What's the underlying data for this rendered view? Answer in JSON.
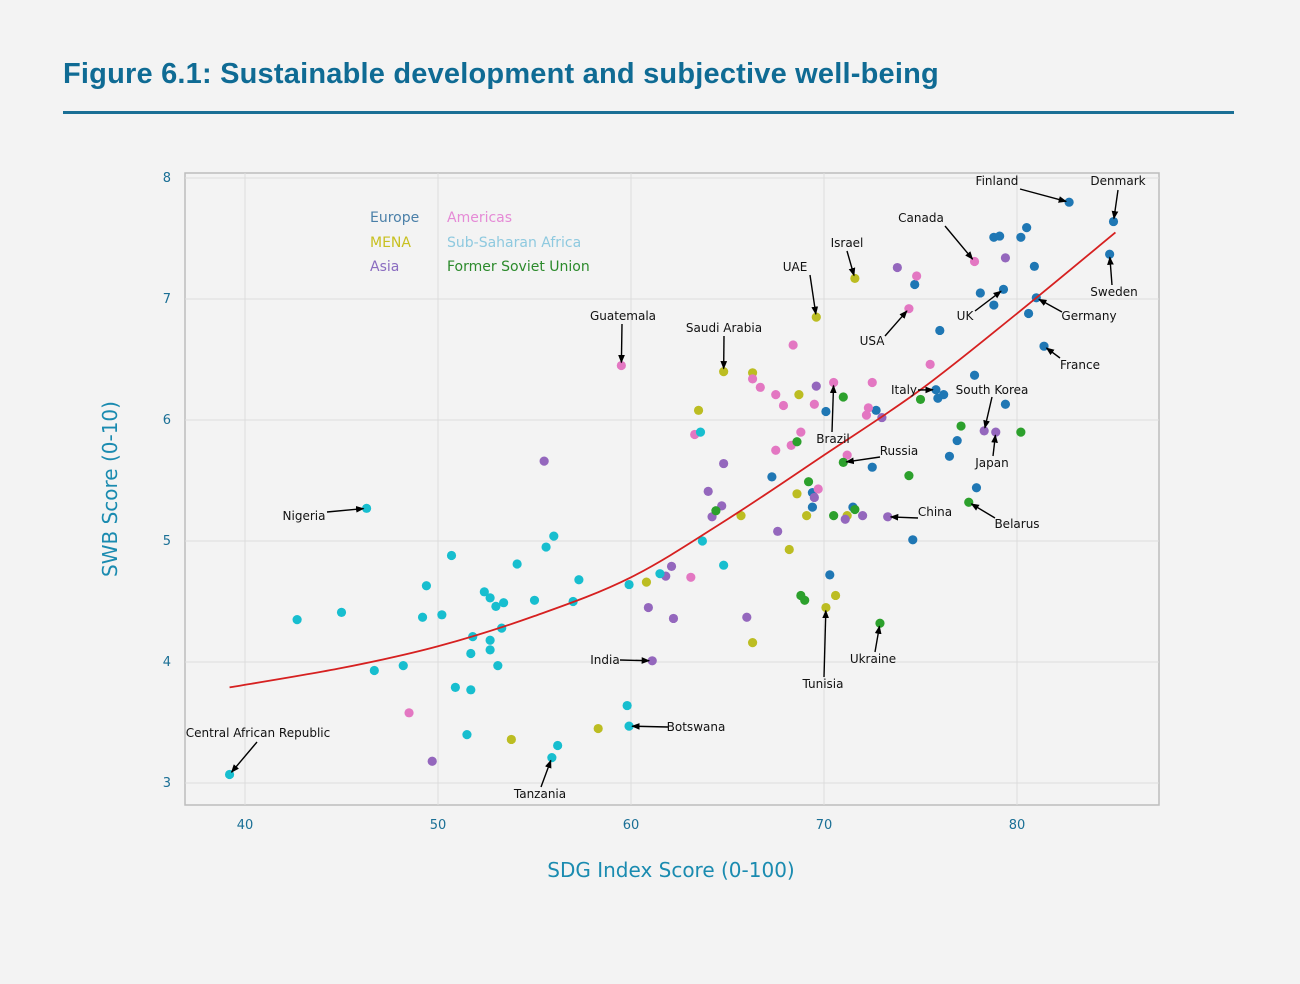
{
  "title": "Figure 6.1: Sustainable development and subjective well-being",
  "chart_data": {
    "type": "scatter",
    "title": "Figure 6.1: Sustainable development and subjective well-being",
    "xlabel": "SDG Index Score (0-100)",
    "ylabel": "SWB Score (0-10)",
    "xlim": [
      36.9,
      87.5
    ],
    "ylim": [
      2.82,
      8.04
    ],
    "xticks": [
      "40",
      "50",
      "60",
      "70",
      "80"
    ],
    "yticks": [
      "3",
      "4",
      "5",
      "6",
      "7",
      "8"
    ],
    "grid": true,
    "legend_placement": "top-left",
    "series": [
      {
        "name": "Europe",
        "color": "#1f77b4",
        "legend_color": "#4a7fa8",
        "points": [
          [
            67.3,
            5.53
          ],
          [
            69.4,
            5.4
          ],
          [
            69.4,
            5.28
          ],
          [
            70.1,
            6.07
          ],
          [
            70.3,
            4.72
          ],
          [
            71.5,
            5.28
          ],
          [
            72.5,
            5.61
          ],
          [
            72.7,
            6.08
          ],
          [
            74.6,
            5.01
          ],
          [
            74.7,
            7.12
          ],
          [
            76.0,
            6.74
          ],
          [
            75.8,
            6.25
          ],
          [
            75.9,
            6.18
          ],
          [
            76.2,
            6.21
          ],
          [
            76.5,
            5.7
          ],
          [
            76.9,
            5.83
          ],
          [
            77.8,
            6.37
          ],
          [
            77.9,
            5.44
          ],
          [
            78.1,
            7.05
          ],
          [
            78.8,
            7.51
          ],
          [
            79.1,
            7.52
          ],
          [
            78.8,
            6.95
          ],
          [
            79.3,
            7.08
          ],
          [
            79.4,
            6.13
          ],
          [
            80.2,
            7.51
          ],
          [
            80.5,
            7.59
          ],
          [
            80.9,
            7.27
          ],
          [
            80.6,
            6.88
          ],
          [
            81.0,
            7.01
          ],
          [
            81.4,
            6.61
          ],
          [
            82.7,
            7.8
          ],
          [
            85.0,
            7.64
          ],
          [
            84.8,
            7.37
          ]
        ]
      },
      {
        "name": "MENA",
        "color": "#bcbd22",
        "legend_color": "#c8c020",
        "points": [
          [
            53.8,
            3.36
          ],
          [
            58.3,
            3.45
          ],
          [
            60.8,
            4.66
          ],
          [
            63.5,
            6.08
          ],
          [
            64.8,
            6.4
          ],
          [
            66.3,
            6.39
          ],
          [
            68.7,
            6.21
          ],
          [
            66.3,
            4.16
          ],
          [
            65.7,
            5.21
          ],
          [
            68.2,
            4.93
          ],
          [
            68.6,
            5.39
          ],
          [
            69.1,
            5.21
          ],
          [
            69.6,
            6.85
          ],
          [
            71.6,
            7.17
          ],
          [
            70.1,
            4.45
          ],
          [
            70.6,
            4.55
          ],
          [
            71.2,
            5.21
          ]
        ]
      },
      {
        "name": "Asia",
        "color": "#9467bd",
        "legend_color": "#8a6cc0",
        "points": [
          [
            49.7,
            3.18
          ],
          [
            55.5,
            5.66
          ],
          [
            60.9,
            4.45
          ],
          [
            61.1,
            4.01
          ],
          [
            61.8,
            4.71
          ],
          [
            62.1,
            4.79
          ],
          [
            62.2,
            4.36
          ],
          [
            64.0,
            5.41
          ],
          [
            64.2,
            5.2
          ],
          [
            64.7,
            5.29
          ],
          [
            64.8,
            5.64
          ],
          [
            67.6,
            5.08
          ],
          [
            66.0,
            4.37
          ],
          [
            69.5,
            5.36
          ],
          [
            69.6,
            6.28
          ],
          [
            71.1,
            5.18
          ],
          [
            72.0,
            5.21
          ],
          [
            73.0,
            6.02
          ],
          [
            73.3,
            5.2
          ],
          [
            73.8,
            7.26
          ],
          [
            78.3,
            5.91
          ],
          [
            78.9,
            5.9
          ],
          [
            79.4,
            7.34
          ]
        ]
      },
      {
        "name": "Americas",
        "color": "#e377c2",
        "legend_color": "#e58ad6",
        "points": [
          [
            48.5,
            3.58
          ],
          [
            59.5,
            6.45
          ],
          [
            63.1,
            4.7
          ],
          [
            63.3,
            5.88
          ],
          [
            66.3,
            6.34
          ],
          [
            66.7,
            6.27
          ],
          [
            67.5,
            6.21
          ],
          [
            67.9,
            6.12
          ],
          [
            68.4,
            6.62
          ],
          [
            67.5,
            5.75
          ],
          [
            68.3,
            5.79
          ],
          [
            68.8,
            5.9
          ],
          [
            69.5,
            6.13
          ],
          [
            70.5,
            6.31
          ],
          [
            69.7,
            5.43
          ],
          [
            71.2,
            5.71
          ],
          [
            72.5,
            6.31
          ],
          [
            72.3,
            6.1
          ],
          [
            72.2,
            6.04
          ],
          [
            74.4,
            6.92
          ],
          [
            74.8,
            7.19
          ],
          [
            75.5,
            6.46
          ],
          [
            77.8,
            7.31
          ]
        ]
      },
      {
        "name": "Sub-Saharan Africa",
        "color": "#17becf",
        "legend_color": "#8ec9df",
        "points": [
          [
            39.2,
            3.07
          ],
          [
            42.7,
            4.35
          ],
          [
            45.0,
            4.41
          ],
          [
            46.3,
            5.27
          ],
          [
            46.7,
            3.93
          ],
          [
            48.2,
            3.97
          ],
          [
            49.4,
            4.63
          ],
          [
            49.2,
            4.37
          ],
          [
            50.2,
            4.39
          ],
          [
            50.7,
            4.88
          ],
          [
            50.9,
            3.79
          ],
          [
            51.5,
            3.4
          ],
          [
            51.7,
            4.07
          ],
          [
            51.7,
            3.77
          ],
          [
            51.8,
            4.21
          ],
          [
            52.4,
            4.58
          ],
          [
            52.7,
            4.53
          ],
          [
            52.7,
            4.18
          ],
          [
            52.7,
            4.1
          ],
          [
            53.0,
            4.46
          ],
          [
            53.1,
            3.97
          ],
          [
            53.3,
            4.28
          ],
          [
            53.4,
            4.49
          ],
          [
            54.1,
            4.81
          ],
          [
            55.0,
            4.51
          ],
          [
            55.6,
            4.95
          ],
          [
            56.0,
            5.04
          ],
          [
            55.9,
            3.21
          ],
          [
            56.2,
            3.31
          ],
          [
            57.0,
            4.5
          ],
          [
            57.3,
            4.68
          ],
          [
            59.8,
            3.64
          ],
          [
            59.9,
            4.64
          ],
          [
            59.9,
            3.47
          ],
          [
            61.5,
            4.73
          ],
          [
            63.6,
            5.9
          ],
          [
            63.7,
            5.0
          ],
          [
            64.8,
            4.8
          ]
        ]
      },
      {
        "name": "Former Soviet Union",
        "color": "#2ca02c",
        "legend_color": "#2b8a2b",
        "points": [
          [
            64.4,
            5.25
          ],
          [
            68.6,
            5.82
          ],
          [
            69.2,
            5.49
          ],
          [
            68.8,
            4.55
          ],
          [
            69.0,
            4.51
          ],
          [
            71.0,
            6.19
          ],
          [
            71.0,
            5.65
          ],
          [
            70.5,
            5.21
          ],
          [
            71.6,
            5.26
          ],
          [
            74.4,
            5.54
          ],
          [
            75.0,
            6.17
          ],
          [
            77.1,
            5.95
          ],
          [
            77.5,
            5.32
          ],
          [
            80.2,
            5.9
          ],
          [
            72.9,
            4.32
          ]
        ]
      }
    ],
    "fit_curve": {
      "color": "#d62020",
      "points": [
        [
          39.2,
          3.79
        ],
        [
          45,
          3.95
        ],
        [
          50,
          4.13
        ],
        [
          55,
          4.38
        ],
        [
          60,
          4.7
        ],
        [
          65,
          5.18
        ],
        [
          70,
          5.71
        ],
        [
          75,
          6.25
        ],
        [
          80,
          6.88
        ],
        [
          85.1,
          7.55
        ]
      ]
    },
    "annotations": [
      {
        "label": "Finland",
        "x": 82.7,
        "y": 7.8
      },
      {
        "label": "Denmark",
        "x": 85.0,
        "y": 7.64
      },
      {
        "label": "Canada",
        "x": 77.8,
        "y": 7.31
      },
      {
        "label": "Israel",
        "x": 71.6,
        "y": 7.17
      },
      {
        "label": "UAE",
        "x": 69.6,
        "y": 6.85
      },
      {
        "label": "Guatemala",
        "x": 59.5,
        "y": 6.45
      },
      {
        "label": "Saudi Arabia",
        "x": 64.8,
        "y": 6.4
      },
      {
        "label": "USA",
        "x": 74.4,
        "y": 6.92
      },
      {
        "label": "UK",
        "x": 79.3,
        "y": 7.08
      },
      {
        "label": "Germany",
        "x": 81.0,
        "y": 7.01
      },
      {
        "label": "Sweden",
        "x": 84.8,
        "y": 7.37
      },
      {
        "label": "France",
        "x": 81.4,
        "y": 6.61
      },
      {
        "label": "Italy",
        "x": 75.8,
        "y": 6.25
      },
      {
        "label": "South Korea",
        "x": 78.3,
        "y": 5.91
      },
      {
        "label": "Brazil",
        "x": 70.5,
        "y": 6.31
      },
      {
        "label": "Russia",
        "x": 71.0,
        "y": 5.65
      },
      {
        "label": "Japan",
        "x": 78.9,
        "y": 5.9
      },
      {
        "label": "China",
        "x": 73.3,
        "y": 5.2
      },
      {
        "label": "Belarus",
        "x": 77.5,
        "y": 5.32
      },
      {
        "label": "Nigeria",
        "x": 46.3,
        "y": 5.27
      },
      {
        "label": "India",
        "x": 61.1,
        "y": 4.01
      },
      {
        "label": "Botswana",
        "x": 59.9,
        "y": 3.47
      },
      {
        "label": "Tunisia",
        "x": 70.1,
        "y": 4.45
      },
      {
        "label": "Ukraine",
        "x": 72.9,
        "y": 4.32
      },
      {
        "label": "Central African Republic",
        "x": 39.2,
        "y": 3.07
      },
      {
        "label": "Tanzania",
        "x": 55.9,
        "y": 3.21
      }
    ]
  }
}
